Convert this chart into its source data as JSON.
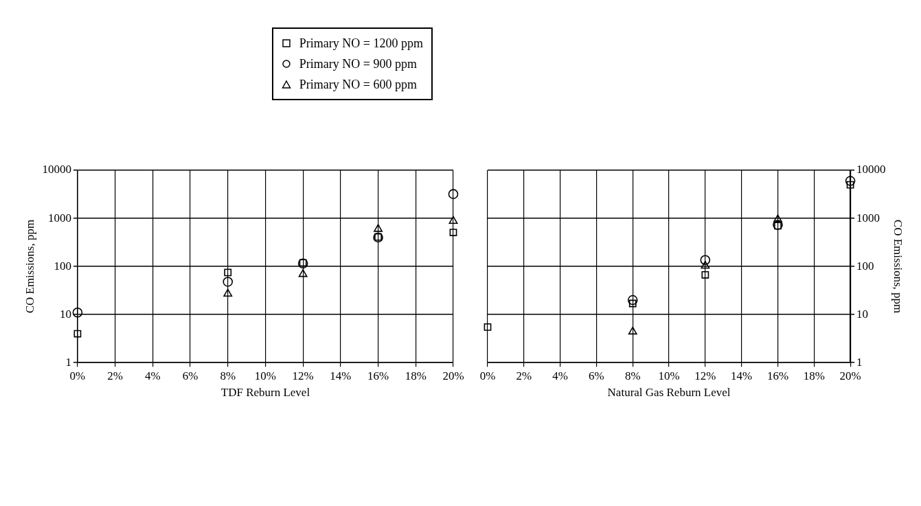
{
  "chart_data": [
    {
      "type": "scatter",
      "xlabel": "TDF Reburn Level",
      "ylabel": "CO Emissions, ppm",
      "legend": "top right",
      "grid": true,
      "log": "y",
      "xlim": [
        0,
        20
      ],
      "ylim": [
        1,
        10000
      ],
      "xticks": [
        {
          "value": 0,
          "label": "0%"
        },
        {
          "value": 2,
          "label": "2%"
        },
        {
          "value": 4,
          "label": "4%"
        },
        {
          "value": 6,
          "label": "6%"
        },
        {
          "value": 8,
          "label": "8%"
        },
        {
          "value": 10,
          "label": "10%"
        },
        {
          "value": 12,
          "label": "12%"
        },
        {
          "value": 14,
          "label": "14%"
        },
        {
          "value": 16,
          "label": "16%"
        },
        {
          "value": 18,
          "label": "18%"
        },
        {
          "value": 20,
          "label": "20%"
        }
      ],
      "yticks": [
        1,
        10,
        100,
        1000,
        10000
      ],
      "x": [
        0,
        8,
        12,
        16,
        20
      ],
      "series": [
        {
          "name": "Primary NO = 1200 ppm",
          "color": "#000000",
          "marker": "square",
          "values": [
            4,
            75,
            119,
            410,
            510
          ]
        },
        {
          "name": "Primary NO = 900 ppm",
          "color": "#000000",
          "marker": "circle",
          "values": [
            11,
            48,
            115,
            400,
            3200
          ]
        },
        {
          "name": "Primary NO = 600 ppm",
          "color": "#000000",
          "marker": "triangle",
          "values": [
            null,
            27,
            69,
            600,
            880
          ]
        }
      ]
    },
    {
      "type": "scatter",
      "xlabel": "Natural Gas Reburn Level",
      "ylabel": "CO Emissions, ppm",
      "grid": true,
      "log": "y",
      "xlim": [
        0,
        20
      ],
      "ylim": [
        1,
        10000
      ],
      "xticks": [
        {
          "value": 0,
          "label": "0%"
        },
        {
          "value": 2,
          "label": "2%"
        },
        {
          "value": 4,
          "label": "4%"
        },
        {
          "value": 6,
          "label": "6%"
        },
        {
          "value": 8,
          "label": "8%"
        },
        {
          "value": 10,
          "label": "10%"
        },
        {
          "value": 12,
          "label": "12%"
        },
        {
          "value": 14,
          "label": "14%"
        },
        {
          "value": 16,
          "label": "16%"
        },
        {
          "value": 18,
          "label": "18%"
        },
        {
          "value": 20,
          "label": "20%"
        }
      ],
      "yticks": [
        1,
        10,
        100,
        1000,
        10000
      ],
      "x": [
        0,
        8,
        12,
        16,
        20
      ],
      "series": [
        {
          "color": "#000000",
          "marker": "square",
          "values": [
            5.5,
            17,
            67,
            700,
            5000
          ]
        },
        {
          "color": "#000000",
          "marker": "circle",
          "values": [
            null,
            20,
            136,
            730,
            6000
          ]
        },
        {
          "color": "#000000",
          "marker": "triangle",
          "values": [
            null,
            4.4,
            103,
            950,
            null
          ]
        }
      ]
    }
  ]
}
